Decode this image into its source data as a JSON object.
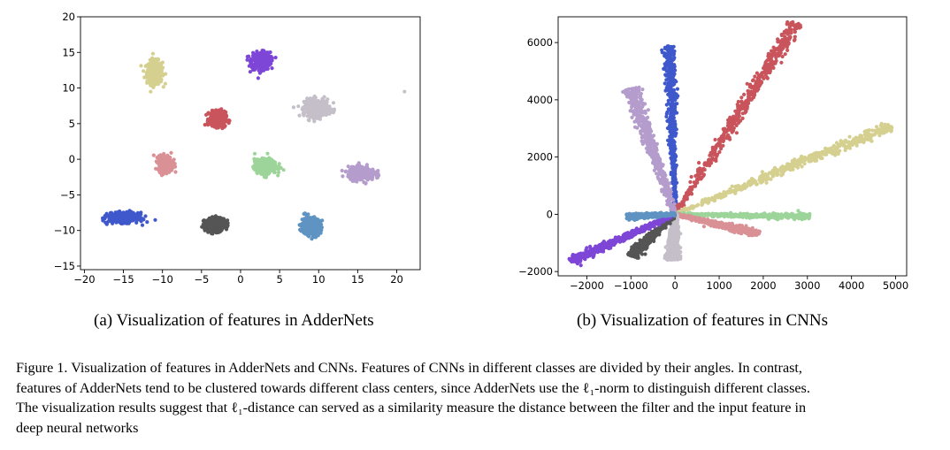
{
  "figure": {
    "caption_lines": [
      "Figure 1. Visualization of features in AdderNets and CNNs. Features of CNNs in different classes are divided by their angles. In contrast,",
      "features of AdderNets tend to be clustered towards different class centers, since AdderNets use the ℓ₁-norm to distinguish different classes.",
      "The visualization results suggest that ℓ₁-distance can served as a similarity measure the distance between the filter and the input feature in",
      "deep neural networks"
    ]
  },
  "chart_data": [
    {
      "type": "scatter",
      "subcaption": "(a) Visualization of features in AdderNets",
      "x_ticks": [
        "−20",
        "−15",
        "−10",
        "−5",
        "0",
        "5",
        "10",
        "15",
        "20"
      ],
      "y_ticks": [
        "−15",
        "−10",
        "−5",
        "0",
        "5",
        "10",
        "15",
        "20"
      ],
      "xlim": [
        -20.5,
        23
      ],
      "ylim": [
        -15.5,
        20
      ],
      "clusters": [
        {
          "name": "khaki",
          "color": "#d5d08f",
          "cx": -11,
          "cy": 12.2,
          "sx": 1.0,
          "sy": 1.6
        },
        {
          "name": "purple",
          "color": "#7e46d6",
          "cx": 2.6,
          "cy": 13.8,
          "sx": 1.2,
          "sy": 1.2
        },
        {
          "name": "silver",
          "color": "#c5bfc9",
          "cx": 9.8,
          "cy": 7.2,
          "sx": 1.6,
          "sy": 1.2
        },
        {
          "name": "red",
          "color": "#c9545c",
          "cx": -2.9,
          "cy": 5.6,
          "sx": 1.0,
          "sy": 1.0
        },
        {
          "name": "pink",
          "color": "#d99195",
          "cx": -9.6,
          "cy": -0.6,
          "sx": 0.9,
          "sy": 1.1
        },
        {
          "name": "green",
          "color": "#9cd49a",
          "cx": 3.2,
          "cy": -1.0,
          "sx": 1.4,
          "sy": 1.0
        },
        {
          "name": "lavender",
          "color": "#b49ccc",
          "cx": 15.5,
          "cy": -2.0,
          "sx": 1.7,
          "sy": 0.9
        },
        {
          "name": "blue",
          "color": "#3f58cc",
          "cx": -15,
          "cy": -8.2,
          "sx": 1.9,
          "sy": 0.7
        },
        {
          "name": "gray",
          "color": "#555555",
          "cx": -3.3,
          "cy": -9.2,
          "sx": 1.3,
          "sy": 0.9
        },
        {
          "name": "steelblue",
          "color": "#5e93c2",
          "cx": 9.0,
          "cy": -9.4,
          "sx": 1.2,
          "sy": 1.2
        }
      ]
    },
    {
      "type": "scatter",
      "subcaption": "(b) Visualization of features in CNNs",
      "x_ticks": [
        "−2000",
        "−1000",
        "0",
        "1000",
        "2000",
        "3000",
        "4000",
        "5000"
      ],
      "y_ticks": [
        "−2000",
        "0",
        "2000",
        "4000",
        "6000"
      ],
      "xlim": [
        -2650,
        5250
      ],
      "ylim": [
        -2150,
        6900
      ],
      "rays": [
        {
          "name": "blue",
          "color": "#3f58cc",
          "ex": -130,
          "ey": 5900,
          "width": 150
        },
        {
          "name": "red",
          "color": "#c9545c",
          "ex": 2750,
          "ey": 6700,
          "width": 220
        },
        {
          "name": "khaki",
          "color": "#d5d08f",
          "ex": 4900,
          "ey": 3100,
          "width": 220
        },
        {
          "name": "lavender",
          "color": "#b49ccc",
          "ex": -1000,
          "ey": 4400,
          "width": 200
        },
        {
          "name": "green",
          "color": "#9cd49a",
          "ex": 3050,
          "ey": -80,
          "width": 110
        },
        {
          "name": "pink",
          "color": "#d99195",
          "ex": 1900,
          "ey": -680,
          "width": 140
        },
        {
          "name": "silver",
          "color": "#c5bfc9",
          "ex": -50,
          "ey": -1600,
          "width": 180
        },
        {
          "name": "gray",
          "color": "#555555",
          "ex": -1000,
          "ey": -1450,
          "width": 150
        },
        {
          "name": "purple",
          "color": "#7e46d6",
          "ex": -2350,
          "ey": -1650,
          "width": 160
        },
        {
          "name": "steelblue",
          "color": "#5e93c2",
          "ex": -1100,
          "ey": -80,
          "width": 120
        }
      ]
    }
  ]
}
